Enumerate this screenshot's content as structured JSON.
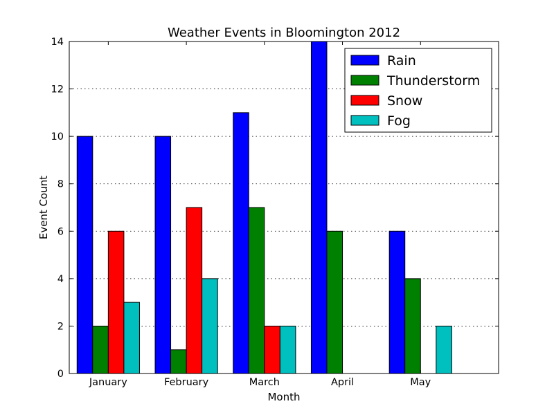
{
  "chart_data": {
    "type": "bar",
    "title": "Weather Events in Bloomington 2012",
    "xlabel": "Month",
    "ylabel": "Event Count",
    "ylim": [
      0,
      14
    ],
    "yticks": [
      0,
      2,
      4,
      6,
      8,
      10,
      12,
      14
    ],
    "grid": "y-dotted",
    "legend_position": "top-right",
    "categories": [
      "January",
      "February",
      "March",
      "April",
      "May"
    ],
    "series": [
      {
        "name": "Rain",
        "color": "#0000ff",
        "values": [
          10,
          10,
          11,
          14,
          6
        ]
      },
      {
        "name": "Thunderstorm",
        "color": "#008000",
        "values": [
          2,
          1,
          7,
          6,
          4
        ]
      },
      {
        "name": "Snow",
        "color": "#ff0000",
        "values": [
          6,
          7,
          2,
          0,
          0
        ]
      },
      {
        "name": "Fog",
        "color": "#00bfbf",
        "values": [
          3,
          4,
          2,
          0,
          2
        ]
      }
    ]
  }
}
